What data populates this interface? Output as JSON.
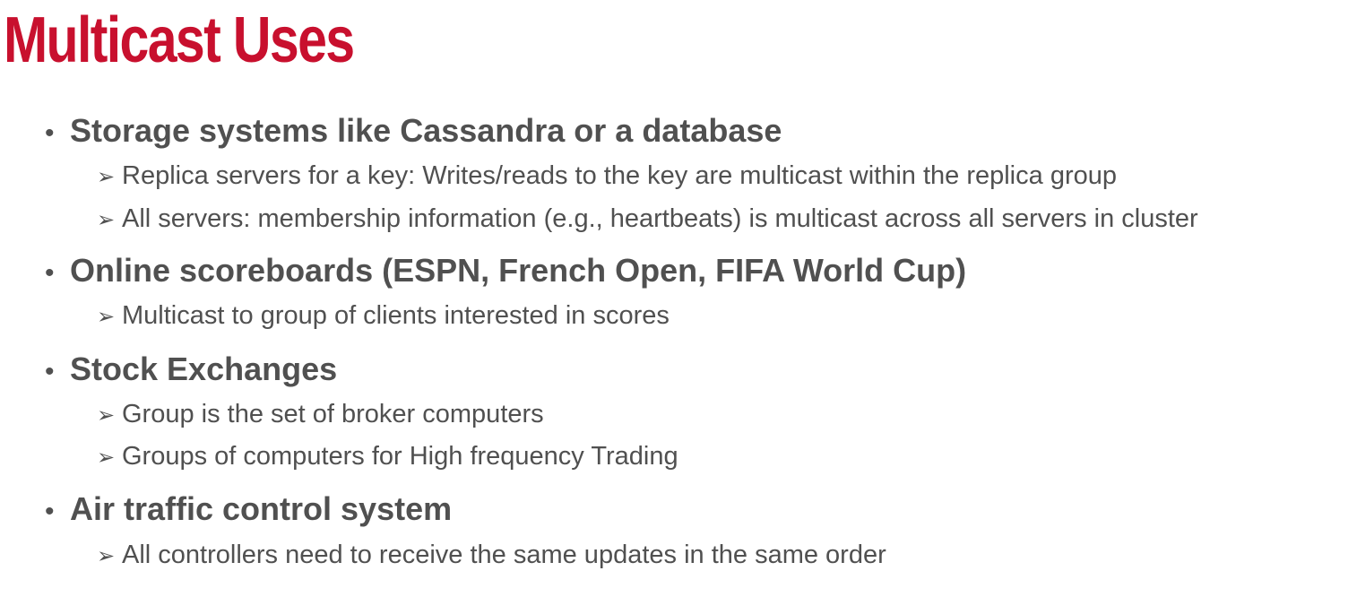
{
  "title": "Multicast Uses",
  "icons": {
    "bullet": "•",
    "arrow": "➢"
  },
  "colors": {
    "title": "#c8102e",
    "text": "#505050"
  },
  "items": [
    {
      "text": "Storage systems like Cassandra or a database",
      "subitems": [
        "Replica servers for a key: Writes/reads to the key are multicast within the replica group",
        "All servers: membership information (e.g., heartbeats) is multicast across all servers in cluster"
      ]
    },
    {
      "text": "Online scoreboards (ESPN, French Open, FIFA World Cup)",
      "subitems": [
        "Multicast to group of clients interested in scores"
      ]
    },
    {
      "text": "Stock Exchanges",
      "subitems": [
        "Group is the set of broker computers",
        "Groups of computers for High frequency Trading"
      ]
    },
    {
      "text": "Air traffic control system",
      "subitems": [
        "All controllers need to receive the same updates in the same order"
      ]
    }
  ]
}
